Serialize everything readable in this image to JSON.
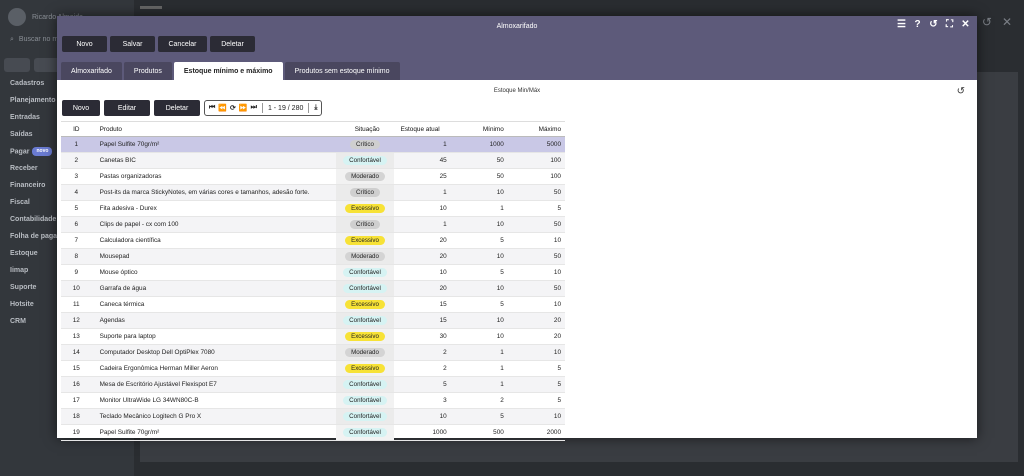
{
  "background": {
    "user_name": "Ricardo Almeida",
    "search_placeholder": "Buscar no menu",
    "menu": [
      {
        "label": "Cadastros"
      },
      {
        "label": "Planejamento"
      },
      {
        "label": "Entradas"
      },
      {
        "label": "Saídas"
      },
      {
        "label": "Pagar",
        "badge": "novo"
      },
      {
        "label": "Receber"
      },
      {
        "label": "Financeiro"
      },
      {
        "label": "Fiscal"
      },
      {
        "label": "Contabilidade"
      },
      {
        "label": "Folha de pagamento"
      },
      {
        "label": "Estoque"
      },
      {
        "label": "Iimap"
      },
      {
        "label": "Suporte"
      },
      {
        "label": "Hotsite"
      },
      {
        "label": "CRM"
      }
    ]
  },
  "modal": {
    "title": "Almoxarifado",
    "actions": {
      "new": "Novo",
      "save": "Salvar",
      "cancel": "Cancelar",
      "delete": "Deletar"
    },
    "tabs": [
      {
        "label": "Almoxarifado"
      },
      {
        "label": "Produtos"
      },
      {
        "label": "Estoque mínimo e máximo",
        "active": true
      },
      {
        "label": "Produtos sem estoque mínimo"
      }
    ]
  },
  "panel": {
    "subtitle": "Estoque Min/Máx",
    "toolbar": {
      "new": "Novo",
      "edit": "Editar",
      "delete": "Deletar"
    },
    "pager": "1 - 19 / 280"
  },
  "table": {
    "headers": {
      "id": "ID",
      "product": "Produto",
      "status": "Situação",
      "stock": "Estoque atual",
      "min": "Mínimo",
      "max": "Máximo"
    },
    "rows": [
      {
        "id": "1",
        "product": "Papel Sulfite 70gr/m²",
        "status": "Crítico",
        "status_key": "critico",
        "stock": "1",
        "min": "1000",
        "max": "5000"
      },
      {
        "id": "2",
        "product": "Canetas BIC",
        "status": "Confortável",
        "status_key": "confortavel",
        "stock": "45",
        "min": "50",
        "max": "100"
      },
      {
        "id": "3",
        "product": "Pastas organizadoras",
        "status": "Moderado",
        "status_key": "moderado",
        "stock": "25",
        "min": "50",
        "max": "100"
      },
      {
        "id": "4",
        "product": "Post-its da marca StickyNotes, em várias cores e tamanhos, adesão forte.",
        "status": "Crítico",
        "status_key": "critico",
        "stock": "1",
        "min": "10",
        "max": "50"
      },
      {
        "id": "5",
        "product": "Fita adesiva - Durex",
        "status": "Excessivo",
        "status_key": "excessivo",
        "stock": "10",
        "min": "1",
        "max": "5"
      },
      {
        "id": "6",
        "product": "Clips de papel - cx com 100",
        "status": "Crítico",
        "status_key": "critico",
        "stock": "1",
        "min": "10",
        "max": "50"
      },
      {
        "id": "7",
        "product": "Calculadora científica",
        "status": "Excessivo",
        "status_key": "excessivo",
        "stock": "20",
        "min": "5",
        "max": "10"
      },
      {
        "id": "8",
        "product": "Mousepad",
        "status": "Moderado",
        "status_key": "moderado",
        "stock": "20",
        "min": "10",
        "max": "50"
      },
      {
        "id": "9",
        "product": "Mouse óptico",
        "status": "Confortável",
        "status_key": "confortavel",
        "stock": "10",
        "min": "5",
        "max": "10"
      },
      {
        "id": "10",
        "product": "Garrafa de água",
        "status": "Confortável",
        "status_key": "confortavel",
        "stock": "20",
        "min": "10",
        "max": "50"
      },
      {
        "id": "11",
        "product": "Caneca térmica",
        "status": "Excessivo",
        "status_key": "excessivo",
        "stock": "15",
        "min": "5",
        "max": "10"
      },
      {
        "id": "12",
        "product": "Agendas",
        "status": "Confortável",
        "status_key": "confortavel",
        "stock": "15",
        "min": "10",
        "max": "20"
      },
      {
        "id": "13",
        "product": "Suporte para laptop",
        "status": "Excessivo",
        "status_key": "excessivo",
        "stock": "30",
        "min": "10",
        "max": "20"
      },
      {
        "id": "14",
        "product": "Computador Desktop Dell OptiPlex 7080",
        "status": "Moderado",
        "status_key": "moderado",
        "stock": "2",
        "min": "1",
        "max": "10"
      },
      {
        "id": "15",
        "product": "Cadeira Ergonômica Herman Miller Aeron",
        "status": "Excessivo",
        "status_key": "excessivo",
        "stock": "2",
        "min": "1",
        "max": "5"
      },
      {
        "id": "16",
        "product": "Mesa de Escritório Ajustável Flexispot E7",
        "status": "Confortável",
        "status_key": "confortavel",
        "stock": "5",
        "min": "1",
        "max": "5"
      },
      {
        "id": "17",
        "product": "Monitor UltraWide LG 34WN80C-B",
        "status": "Confortável",
        "status_key": "confortavel",
        "stock": "3",
        "min": "2",
        "max": "5"
      },
      {
        "id": "18",
        "product": "Teclado Mecânico Logitech G Pro X",
        "status": "Confortável",
        "status_key": "confortavel",
        "stock": "10",
        "min": "5",
        "max": "10"
      },
      {
        "id": "19",
        "product": "Papel Sulfite 70gr/m²",
        "status": "Confortável",
        "status_key": "confortavel",
        "stock": "1000",
        "min": "500",
        "max": "2000"
      }
    ]
  }
}
